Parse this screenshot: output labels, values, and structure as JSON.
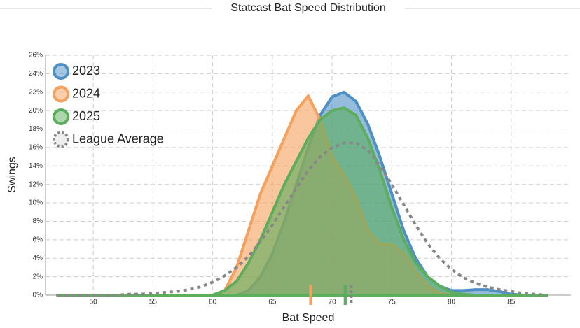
{
  "chart_data": {
    "type": "area",
    "title": "Statcast Bat Speed Distribution",
    "x_label": "Bat Speed",
    "y_label": "Swings",
    "x": [
      47,
      48,
      49,
      50,
      51,
      52,
      53,
      54,
      55,
      56,
      57,
      58,
      59,
      60,
      61,
      62,
      63,
      64,
      65,
      66,
      67,
      68,
      69,
      70,
      71,
      72,
      73,
      74,
      75,
      76,
      77,
      78,
      79,
      80,
      81,
      82,
      83,
      84,
      85,
      86,
      87,
      88
    ],
    "series": [
      {
        "name": "2023",
        "color": "#4e8fc4",
        "mean": 71.1,
        "values": [
          0,
          0,
          0,
          0,
          0,
          0,
          0,
          0,
          0,
          0,
          0,
          0,
          0,
          0,
          0,
          0,
          0.5,
          2,
          4.5,
          8,
          12,
          16,
          19.5,
          21.5,
          22,
          21,
          18.5,
          15,
          11,
          7,
          4,
          2,
          1,
          0.5,
          0.5,
          0.6,
          0.6,
          0.4,
          0.1,
          0,
          0,
          0
        ]
      },
      {
        "name": "2024",
        "color": "#f5a05c",
        "mean": 68.2,
        "values": [
          0,
          0,
          0,
          0,
          0,
          0,
          0,
          0,
          0,
          0,
          0,
          0,
          0,
          0,
          0.5,
          3,
          7,
          11,
          14,
          17,
          20,
          21.6,
          19,
          15,
          13,
          10.5,
          7,
          5.5,
          5.5,
          4.5,
          2.5,
          1,
          0.2,
          0,
          0,
          0,
          0,
          0,
          0,
          0,
          0,
          0
        ]
      },
      {
        "name": "2025",
        "color": "#5cae5c",
        "mean": 71.1,
        "values": [
          0,
          0,
          0,
          0,
          0,
          0,
          0,
          0,
          0,
          0,
          0,
          0,
          0,
          0,
          0.5,
          1.5,
          3.5,
          6,
          9,
          12,
          14.5,
          17,
          19,
          20,
          20.3,
          19.5,
          17,
          13.5,
          9.5,
          6,
          3.5,
          2,
          1,
          0.3,
          0.1,
          0,
          0,
          0,
          0,
          0,
          0,
          0
        ]
      },
      {
        "name": "League Average",
        "color": "#888888",
        "dashed": true,
        "mean": 71.6,
        "values": [
          0,
          0,
          0,
          0,
          0,
          0,
          0.1,
          0.1,
          0.2,
          0.3,
          0.4,
          0.6,
          0.9,
          1.4,
          2.1,
          3,
          4.2,
          5.8,
          7.6,
          9.6,
          11.6,
          13.5,
          15,
          16,
          16.5,
          16.5,
          15.7,
          14,
          12,
          9.8,
          7.6,
          5.6,
          4,
          2.8,
          1.9,
          1.3,
          0.9,
          0.6,
          0.4,
          0.2,
          0.1,
          0
        ]
      }
    ],
    "xlim": [
      46,
      90
    ],
    "xticks": [
      50,
      55,
      60,
      65,
      70,
      75,
      80,
      85
    ],
    "ylim": [
      0,
      26
    ],
    "yticks": [
      {
        "value": 0,
        "label": "0%"
      },
      {
        "value": 2,
        "label": "2%"
      },
      {
        "value": 4,
        "label": "4%"
      },
      {
        "value": 6,
        "label": "6%"
      },
      {
        "value": 8,
        "label": "8%"
      },
      {
        "value": 10,
        "label": "10%"
      },
      {
        "value": 12,
        "label": "12%"
      },
      {
        "value": 14,
        "label": "14%"
      },
      {
        "value": 16,
        "label": "16%"
      },
      {
        "value": 18,
        "label": "18%"
      },
      {
        "value": 20,
        "label": "20%"
      },
      {
        "value": 22,
        "label": "22%"
      },
      {
        "value": 24,
        "label": "24%"
      },
      {
        "value": 26,
        "label": "26%"
      }
    ],
    "grid": true,
    "legend": "top-left"
  }
}
